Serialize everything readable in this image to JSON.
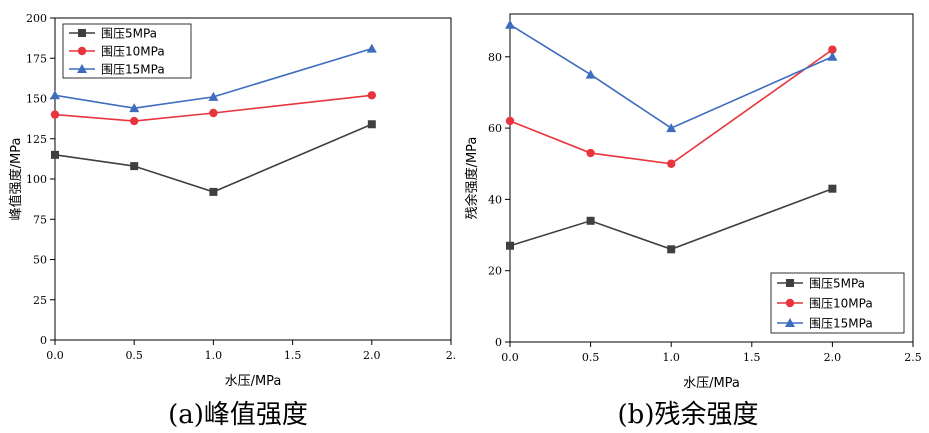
{
  "chart_data": [
    {
      "type": "line",
      "x": [
        0.0,
        0.5,
        1.0,
        2.0
      ],
      "xlim": [
        0,
        2.5
      ],
      "ylim": [
        0,
        200
      ],
      "xticks": [
        "0.0",
        "0.5",
        "1.0",
        "1.5",
        "2.0",
        "2."
      ],
      "yticks": [
        "0",
        "25",
        "50",
        "75",
        "100",
        "125",
        "150",
        "175",
        "200"
      ],
      "xlabel": "水压/MPa",
      "ylabel": "峰值强度/MPa",
      "caption": "(a)峰值强度",
      "legend_position": "top-left",
      "series": [
        {
          "name": "围压5MPa",
          "color": "#3f3f3f",
          "marker": "square",
          "values": [
            115,
            108,
            92,
            134
          ]
        },
        {
          "name": "围压10MPa",
          "color": "#e8353d",
          "marker": "circle",
          "values": [
            140,
            136,
            141,
            152
          ]
        },
        {
          "name": "围压15MPa",
          "color": "#3e6dbf",
          "marker": "triangle",
          "values": [
            152,
            144,
            151,
            181
          ]
        }
      ]
    },
    {
      "type": "line",
      "x": [
        0.0,
        0.5,
        1.0,
        2.0
      ],
      "xlim": [
        0,
        2.5
      ],
      "ylim": [
        0,
        92
      ],
      "xticks": [
        "0.0",
        "0.5",
        "1.0",
        "1.5",
        "2.0",
        "2.5"
      ],
      "yticks": [
        "0",
        "20",
        "40",
        "60",
        "80"
      ],
      "xlabel": "水压/MPa",
      "ylabel": "残余强度/MPa",
      "caption": "(b)残余强度",
      "legend_position": "bottom-right",
      "series": [
        {
          "name": "围压5MPa",
          "color": "#3f3f3f",
          "marker": "square",
          "values": [
            27,
            34,
            26,
            43
          ]
        },
        {
          "name": "围压10MPa",
          "color": "#e8353d",
          "marker": "circle",
          "values": [
            62,
            53,
            50,
            82
          ]
        },
        {
          "name": "围压15MPa",
          "color": "#3e6dbf",
          "marker": "triangle",
          "values": [
            89,
            75,
            60,
            80
          ]
        }
      ]
    }
  ]
}
